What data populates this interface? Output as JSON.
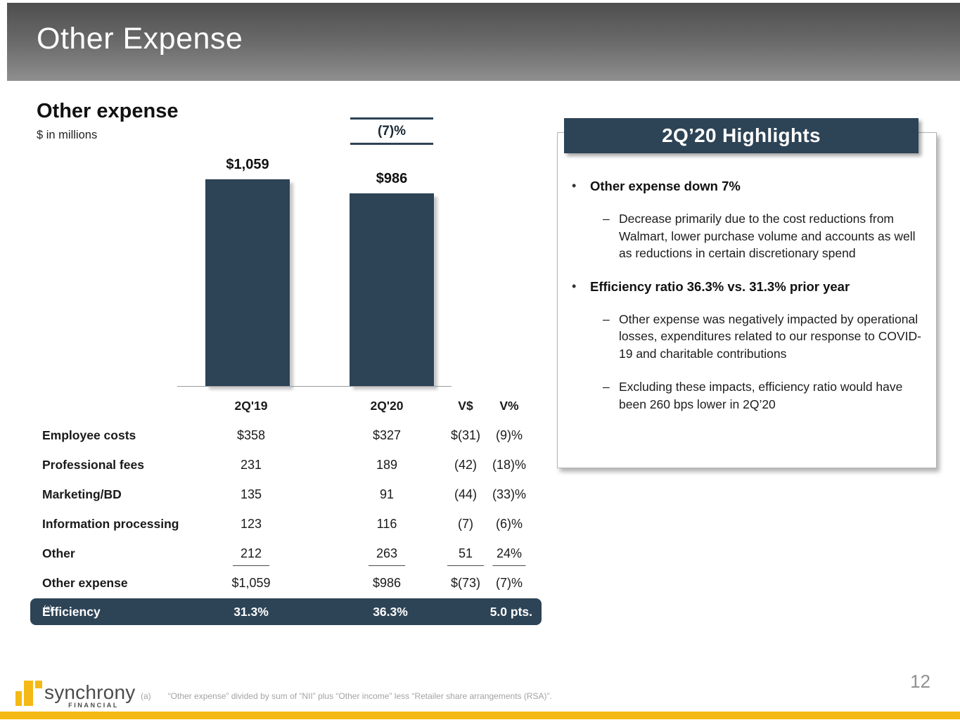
{
  "slide": {
    "title": "Other Expense",
    "page_number": "12",
    "footnote": {
      "marker": "(a)",
      "text": "“Other expense” divided by sum of “NII” plus “Other income” less “Retailer share arrangements (RSA)”."
    },
    "logo": {
      "brand": "synchrony",
      "division": "FINANCIAL"
    }
  },
  "chart": {
    "section_title": "Other expense",
    "units_label": "$ in millions",
    "change_badge": "(7)%",
    "bars": [
      {
        "category": "2Q'19",
        "display": "$1,059"
      },
      {
        "category": "2Q'20",
        "display": "$986"
      }
    ]
  },
  "chart_data": {
    "type": "bar",
    "title": "Other expense",
    "units": "$ in millions",
    "categories": [
      "2Q'19",
      "2Q'20"
    ],
    "values": [
      1059,
      986
    ],
    "value_labels": [
      "$1,059",
      "$986"
    ],
    "annotations": [
      "(7)% vs. prior year"
    ],
    "bar_color": "#2d4356",
    "ylim": [
      0,
      1100
    ],
    "grid": false,
    "legend": false
  },
  "table": {
    "headers": {
      "c1": "2Q'19",
      "c2": "2Q'20",
      "c3": "V$",
      "c4": "V%"
    },
    "rows": [
      {
        "label": "Employee costs",
        "c1": "$358",
        "c2": "$327",
        "c3": "$(31)",
        "c4": "(9)%"
      },
      {
        "label": "Professional fees",
        "c1": "231",
        "c2": "189",
        "c3": "(42)",
        "c4": "(18)%"
      },
      {
        "label": "Marketing/BD",
        "c1": "135",
        "c2": "91",
        "c3": "(44)",
        "c4": "(33)%"
      },
      {
        "label": "Information processing",
        "c1": "123",
        "c2": "116",
        "c3": "(7)",
        "c4": "(6)%"
      },
      {
        "label": "Other",
        "c1": "212",
        "c2": "263",
        "c3": "51",
        "c4": "24%"
      },
      {
        "label": "Other expense",
        "c1": "$1,059",
        "c2": "$986",
        "c3": "$(73)",
        "c4": "(7)%"
      }
    ],
    "efficiency_row": {
      "label": "Efficiency",
      "footnote_ref": "(a)",
      "c1": "31.3%",
      "c2": "36.3%",
      "delta": "5.0 pts."
    }
  },
  "highlights": {
    "title": "2Q’20 Highlights",
    "marker_bullet": "•",
    "marker_dash": "–",
    "bullets": [
      {
        "text": "Other expense down 7%",
        "subs": [
          "Decrease primarily due to the cost reductions from Walmart, lower purchase volume and accounts as well as reductions in certain discretionary spend"
        ]
      },
      {
        "text": "Efficiency ratio 36.3% vs. 31.3% prior year",
        "subs": [
          "Other expense was negatively impacted by operational losses, expenditures related to our response to COVID-19 and charitable contributions",
          "Excluding these impacts, efficiency ratio would have been 260 bps lower in 2Q’20"
        ]
      }
    ]
  },
  "colors": {
    "slate": "#2d4356",
    "gold": "#f5b915",
    "header_gradient_top": "#4e4e4e",
    "header_gradient_bottom": "#8f8f8f"
  }
}
